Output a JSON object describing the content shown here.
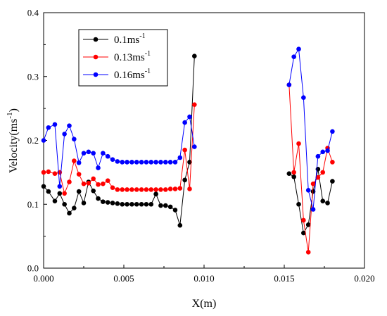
{
  "chart_data": {
    "type": "line",
    "xlabel": "X(m)",
    "ylabel": "Velocity(ms",
    "ylabel_sup": "-1",
    "ylabel_end": ")",
    "xlim": [
      0.0,
      0.02
    ],
    "ylim": [
      0.0,
      0.4
    ],
    "xticks": [
      "0.000",
      "0.005",
      "0.010",
      "0.015",
      "0.020"
    ],
    "xtick_values": [
      0.0,
      0.005,
      0.01,
      0.015,
      0.02
    ],
    "yticks": [
      "0.0",
      "0.1",
      "0.2",
      "0.3",
      "0.4"
    ],
    "ytick_values": [
      0.0,
      0.1,
      0.2,
      0.3,
      0.4
    ],
    "grid": false,
    "legend_position": "top-left",
    "series": [
      {
        "name": "0.1ms",
        "name_sup": "-1",
        "color": "#000000",
        "segments": [
          [
            [
              0.0,
              0.128
            ],
            [
              0.0003,
              0.12
            ],
            [
              0.0007,
              0.105
            ],
            [
              0.001,
              0.117
            ],
            [
              0.0013,
              0.1
            ],
            [
              0.0016,
              0.086
            ],
            [
              0.0019,
              0.094
            ],
            [
              0.0022,
              0.12
            ],
            [
              0.0025,
              0.102
            ],
            [
              0.0028,
              0.135
            ],
            [
              0.0031,
              0.121
            ],
            [
              0.0034,
              0.109
            ],
            [
              0.0037,
              0.104
            ],
            [
              0.004,
              0.103
            ],
            [
              0.0043,
              0.102
            ],
            [
              0.0046,
              0.101
            ],
            [
              0.0049,
              0.1
            ],
            [
              0.0052,
              0.1
            ],
            [
              0.0055,
              0.1
            ],
            [
              0.0058,
              0.1
            ],
            [
              0.0061,
              0.1
            ],
            [
              0.0064,
              0.1
            ],
            [
              0.0067,
              0.1
            ],
            [
              0.007,
              0.116
            ],
            [
              0.0073,
              0.098
            ],
            [
              0.0076,
              0.098
            ],
            [
              0.0079,
              0.096
            ],
            [
              0.0082,
              0.091
            ],
            [
              0.0085,
              0.067
            ],
            [
              0.0088,
              0.138
            ],
            [
              0.0091,
              0.166
            ],
            [
              0.0094,
              0.332
            ]
          ],
          [
            [
              0.0153,
              0.148
            ],
            [
              0.0156,
              0.143
            ],
            [
              0.0159,
              0.1
            ],
            [
              0.0162,
              0.055
            ],
            [
              0.0165,
              0.068
            ],
            [
              0.0168,
              0.12
            ],
            [
              0.0171,
              0.155
            ],
            [
              0.0174,
              0.105
            ],
            [
              0.0177,
              0.102
            ],
            [
              0.018,
              0.136
            ]
          ]
        ]
      },
      {
        "name": "0.13ms",
        "name_sup": "-1",
        "color": "#ff0000",
        "segments": [
          [
            [
              0.0,
              0.15
            ],
            [
              0.0003,
              0.151
            ],
            [
              0.0007,
              0.148
            ],
            [
              0.001,
              0.15
            ],
            [
              0.0013,
              0.117
            ],
            [
              0.0016,
              0.135
            ],
            [
              0.0019,
              0.168
            ],
            [
              0.0022,
              0.147
            ],
            [
              0.0025,
              0.132
            ],
            [
              0.0028,
              0.133
            ],
            [
              0.0031,
              0.14
            ],
            [
              0.0034,
              0.131
            ],
            [
              0.0037,
              0.132
            ],
            [
              0.004,
              0.137
            ],
            [
              0.0043,
              0.126
            ],
            [
              0.0046,
              0.123
            ],
            [
              0.0049,
              0.123
            ],
            [
              0.0052,
              0.123
            ],
            [
              0.0055,
              0.123
            ],
            [
              0.0058,
              0.123
            ],
            [
              0.0061,
              0.123
            ],
            [
              0.0064,
              0.123
            ],
            [
              0.0067,
              0.123
            ],
            [
              0.007,
              0.123
            ],
            [
              0.0073,
              0.123
            ],
            [
              0.0076,
              0.123
            ],
            [
              0.0079,
              0.124
            ],
            [
              0.0082,
              0.124
            ],
            [
              0.0085,
              0.125
            ],
            [
              0.0088,
              0.185
            ],
            [
              0.0091,
              0.124
            ],
            [
              0.0094,
              0.256
            ]
          ],
          [
            [
              0.0153,
              0.287
            ],
            [
              0.0156,
              0.15
            ],
            [
              0.0159,
              0.195
            ],
            [
              0.0162,
              0.075
            ],
            [
              0.0165,
              0.025
            ],
            [
              0.0168,
              0.132
            ],
            [
              0.0171,
              0.142
            ],
            [
              0.0174,
              0.15
            ],
            [
              0.0177,
              0.188
            ],
            [
              0.018,
              0.166
            ]
          ]
        ]
      },
      {
        "name": "0.16ms",
        "name_sup": "-1",
        "color": "#0000ff",
        "segments": [
          [
            [
              0.0,
              0.2
            ],
            [
              0.0003,
              0.22
            ],
            [
              0.0007,
              0.225
            ],
            [
              0.001,
              0.128
            ],
            [
              0.0013,
              0.21
            ],
            [
              0.0016,
              0.223
            ],
            [
              0.0019,
              0.202
            ],
            [
              0.0022,
              0.165
            ],
            [
              0.0025,
              0.18
            ],
            [
              0.0028,
              0.182
            ],
            [
              0.0031,
              0.18
            ],
            [
              0.0034,
              0.157
            ],
            [
              0.0037,
              0.18
            ],
            [
              0.004,
              0.175
            ],
            [
              0.0043,
              0.17
            ],
            [
              0.0046,
              0.167
            ],
            [
              0.0049,
              0.166
            ],
            [
              0.0052,
              0.166
            ],
            [
              0.0055,
              0.166
            ],
            [
              0.0058,
              0.166
            ],
            [
              0.0061,
              0.166
            ],
            [
              0.0064,
              0.166
            ],
            [
              0.0067,
              0.166
            ],
            [
              0.007,
              0.166
            ],
            [
              0.0073,
              0.166
            ],
            [
              0.0076,
              0.166
            ],
            [
              0.0079,
              0.166
            ],
            [
              0.0082,
              0.166
            ],
            [
              0.0085,
              0.173
            ],
            [
              0.0088,
              0.228
            ],
            [
              0.0091,
              0.237
            ],
            [
              0.0094,
              0.19
            ]
          ],
          [
            [
              0.0153,
              0.287
            ],
            [
              0.0156,
              0.331
            ],
            [
              0.0159,
              0.343
            ],
            [
              0.0162,
              0.267
            ],
            [
              0.0165,
              0.122
            ],
            [
              0.0168,
              0.092
            ],
            [
              0.0171,
              0.175
            ],
            [
              0.0174,
              0.182
            ],
            [
              0.0177,
              0.184
            ],
            [
              0.018,
              0.214
            ]
          ]
        ]
      }
    ]
  }
}
